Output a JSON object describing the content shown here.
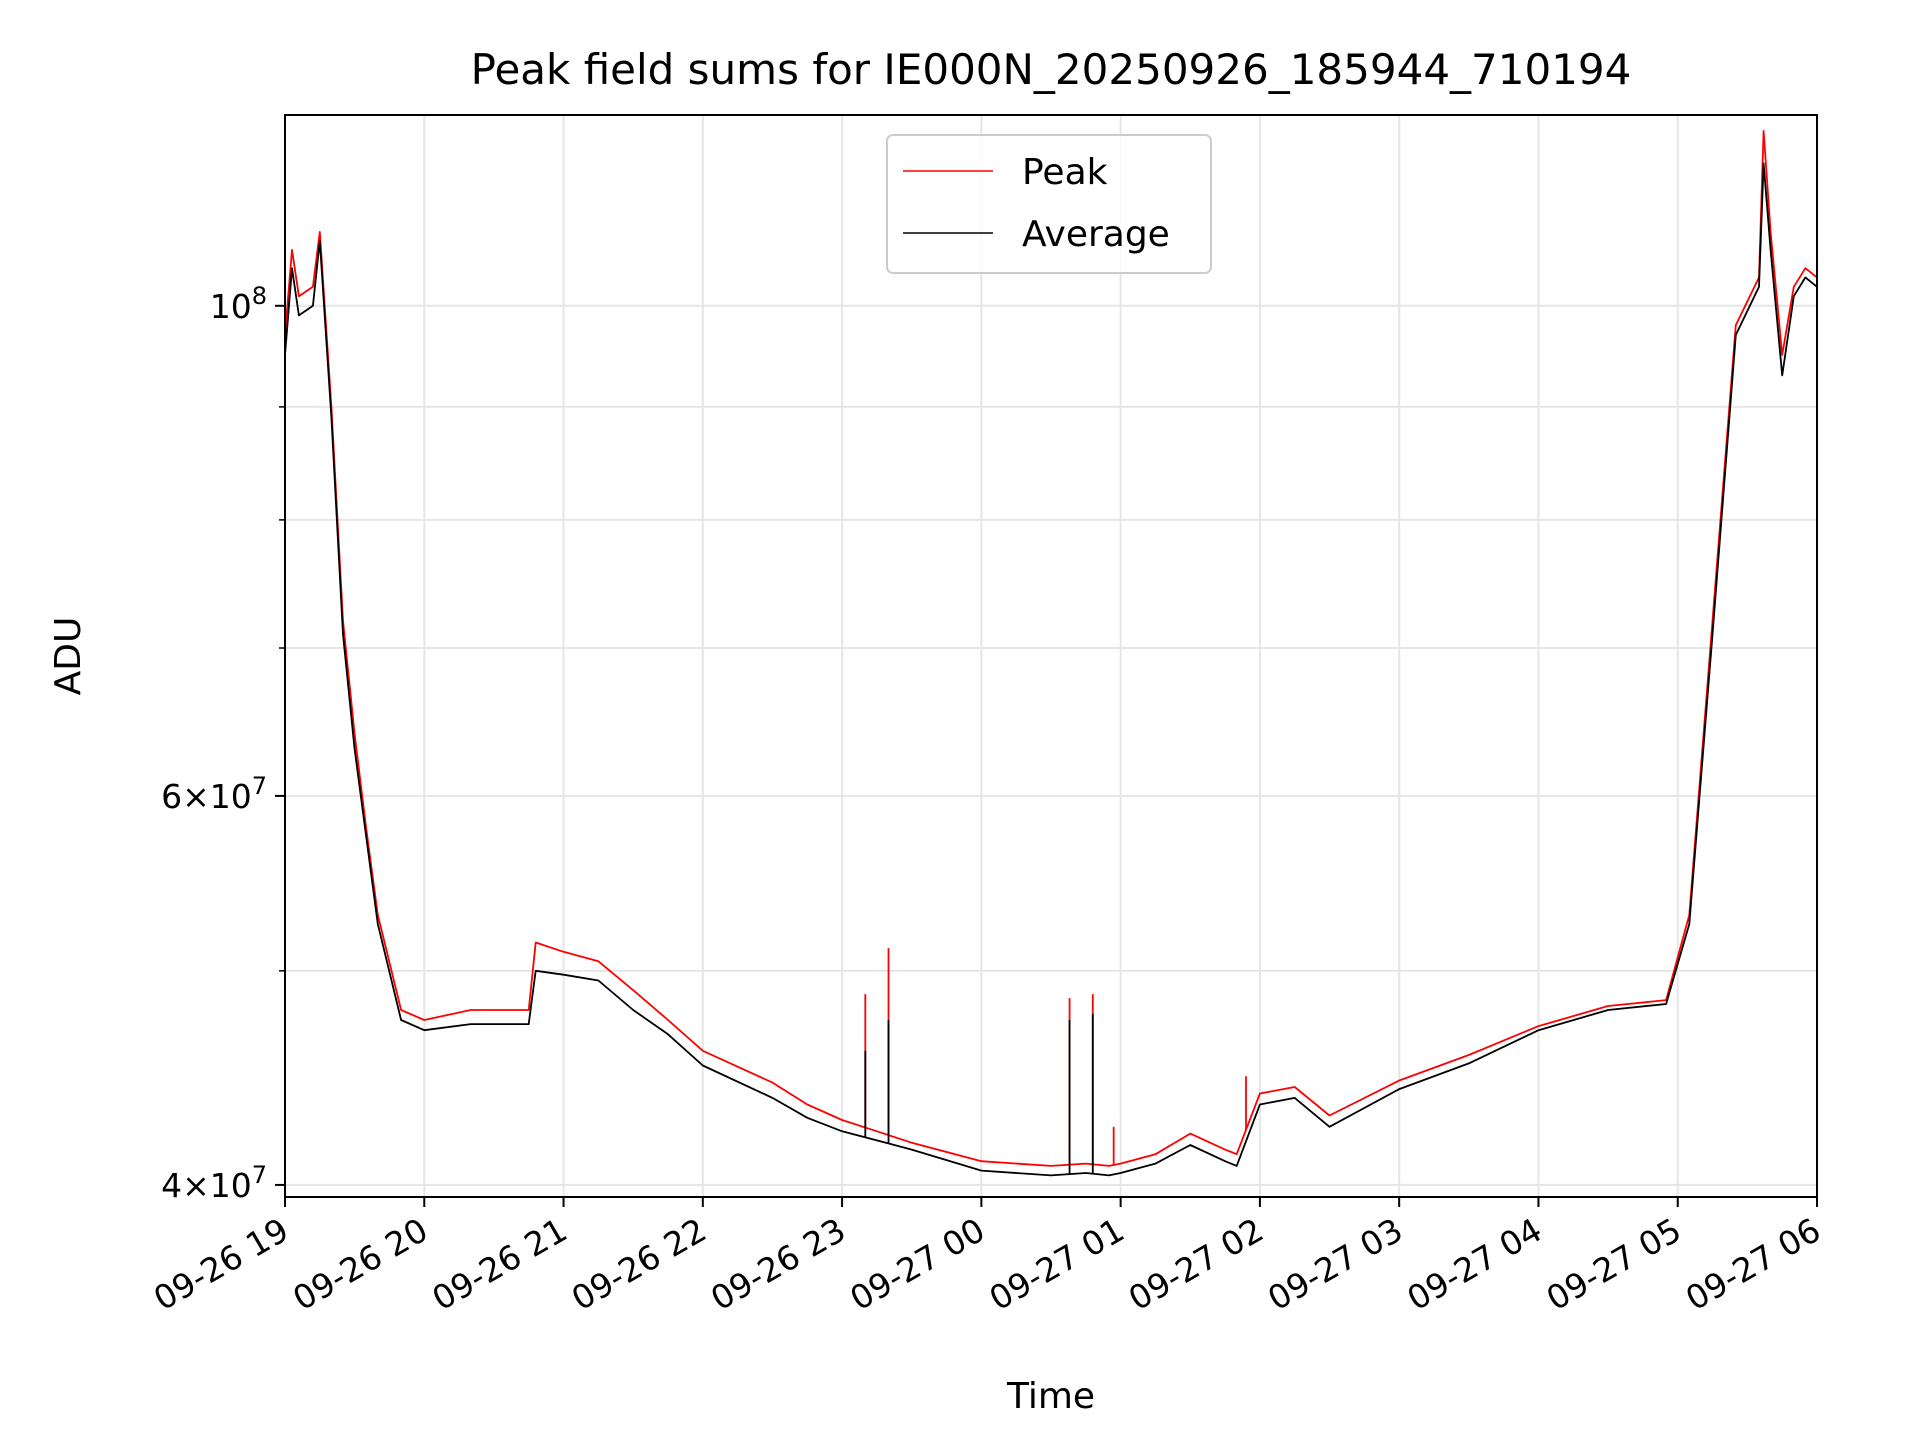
{
  "chart_data": {
    "type": "line",
    "title": "Peak field sums for IE000N_20250926_185944_710194",
    "xlabel": "Time",
    "ylabel": "ADU",
    "yscale": "log",
    "xlim": [
      "2025-09-26 19:00",
      "2025-09-27 06:00"
    ],
    "ylim": [
      39500000,
      122000000
    ],
    "x_tick_labels": [
      "09-26 19",
      "09-26 20",
      "09-26 21",
      "09-26 22",
      "09-26 23",
      "09-27 00",
      "09-27 01",
      "09-27 02",
      "09-27 03",
      "09-27 04",
      "09-27 05",
      "09-27 06"
    ],
    "y_tick_labels": [
      {
        "value": 40000000,
        "base": "4",
        "exp": "7",
        "times": true
      },
      {
        "value": 60000000,
        "base": "6",
        "exp": "7",
        "times": true
      },
      {
        "value": 100000000,
        "base": "10",
        "exp": "8",
        "times": false
      }
    ],
    "y_minor_ticks": [
      50000000,
      70000000,
      80000000,
      90000000
    ],
    "grid": true,
    "legend_position": "upper center",
    "series": [
      {
        "name": "Peak",
        "color": "#ff0000",
        "x": [
          "2025-09-26 19:00",
          "2025-09-26 19:03",
          "2025-09-26 19:06",
          "2025-09-26 19:12",
          "2025-09-26 19:15",
          "2025-09-26 19:20",
          "2025-09-26 19:25",
          "2025-09-26 19:30",
          "2025-09-26 19:35",
          "2025-09-26 19:40",
          "2025-09-26 19:50",
          "2025-09-26 20:00",
          "2025-09-26 20:20",
          "2025-09-26 20:45",
          "2025-09-26 20:48",
          "2025-09-26 21:00",
          "2025-09-26 21:15",
          "2025-09-26 21:30",
          "2025-09-26 21:45",
          "2025-09-26 22:00",
          "2025-09-26 22:30",
          "2025-09-26 22:45",
          "2025-09-26 23:00",
          "2025-09-26 23:15",
          "2025-09-26 23:30",
          "2025-09-27 00:00",
          "2025-09-27 00:30",
          "2025-09-27 00:45",
          "2025-09-27 00:55",
          "2025-09-27 01:00",
          "2025-09-27 01:15",
          "2025-09-27 01:30",
          "2025-09-27 01:45",
          "2025-09-27 01:50",
          "2025-09-27 02:00",
          "2025-09-27 02:15",
          "2025-09-27 02:30",
          "2025-09-27 03:00",
          "2025-09-27 03:30",
          "2025-09-27 04:00",
          "2025-09-27 04:30",
          "2025-09-27 04:55",
          "2025-09-27 05:05",
          "2025-09-27 05:15",
          "2025-09-27 05:25",
          "2025-09-27 05:35",
          "2025-09-27 05:37",
          "2025-09-27 05:40",
          "2025-09-27 05:45",
          "2025-09-27 05:50",
          "2025-09-27 05:55",
          "2025-09-27 06:00"
        ],
        "y": [
          97000000,
          106000000,
          101000000,
          102000000,
          108000000,
          90000000,
          72000000,
          64000000,
          58000000,
          53000000,
          48000000,
          47500000,
          48000000,
          48000000,
          51500000,
          51000000,
          50500000,
          49000000,
          47500000,
          46000000,
          44500000,
          43500000,
          42800000,
          42300000,
          41800000,
          41000000,
          40800000,
          40900000,
          40800000,
          40900000,
          41300000,
          42200000,
          41500000,
          41300000,
          44000000,
          44300000,
          43000000,
          44600000,
          45800000,
          47200000,
          48200000,
          48500000,
          53000000,
          72000000,
          98000000,
          103000000,
          120000000,
          108000000,
          95000000,
          102000000,
          104000000,
          103000000
        ]
      },
      {
        "name": "Average",
        "color": "#000000",
        "x": [
          "2025-09-26 19:00",
          "2025-09-26 19:03",
          "2025-09-26 19:06",
          "2025-09-26 19:12",
          "2025-09-26 19:15",
          "2025-09-26 19:20",
          "2025-09-26 19:25",
          "2025-09-26 19:30",
          "2025-09-26 19:35",
          "2025-09-26 19:40",
          "2025-09-26 19:50",
          "2025-09-26 20:00",
          "2025-09-26 20:20",
          "2025-09-26 20:45",
          "2025-09-26 20:48",
          "2025-09-26 21:00",
          "2025-09-26 21:15",
          "2025-09-26 21:30",
          "2025-09-26 21:45",
          "2025-09-26 22:00",
          "2025-09-26 22:30",
          "2025-09-26 22:45",
          "2025-09-26 23:00",
          "2025-09-26 23:15",
          "2025-09-26 23:30",
          "2025-09-27 00:00",
          "2025-09-27 00:30",
          "2025-09-27 00:45",
          "2025-09-27 00:55",
          "2025-09-27 01:00",
          "2025-09-27 01:15",
          "2025-09-27 01:30",
          "2025-09-27 01:45",
          "2025-09-27 01:50",
          "2025-09-27 02:00",
          "2025-09-27 02:15",
          "2025-09-27 02:30",
          "2025-09-27 03:00",
          "2025-09-27 03:30",
          "2025-09-27 04:00",
          "2025-09-27 04:30",
          "2025-09-27 04:55",
          "2025-09-27 05:05",
          "2025-09-27 05:15",
          "2025-09-27 05:25",
          "2025-09-27 05:35",
          "2025-09-27 05:37",
          "2025-09-27 05:40",
          "2025-09-27 05:45",
          "2025-09-27 05:50",
          "2025-09-27 05:55",
          "2025-09-27 06:00"
        ],
        "y": [
          95000000,
          104000000,
          99000000,
          100000000,
          107000000,
          89000000,
          71000000,
          63000000,
          57500000,
          52500000,
          47500000,
          47000000,
          47300000,
          47300000,
          50000000,
          49800000,
          49500000,
          48000000,
          46800000,
          45300000,
          43800000,
          42900000,
          42300000,
          41900000,
          41500000,
          40600000,
          40400000,
          40500000,
          40400000,
          40500000,
          40900000,
          41700000,
          41000000,
          40800000,
          43500000,
          43800000,
          42500000,
          44200000,
          45400000,
          47000000,
          48000000,
          48300000,
          52500000,
          71000000,
          97000000,
          102000000,
          116000000,
          106000000,
          93000000,
          101000000,
          103000000,
          102000000
        ]
      }
    ],
    "spikes": [
      {
        "series": "Peak",
        "x": "2025-09-26 23:10",
        "y": 48800000
      },
      {
        "series": "Peak",
        "x": "2025-09-26 23:20",
        "y": 51200000
      },
      {
        "series": "Peak",
        "x": "2025-09-27 00:38",
        "y": 48600000
      },
      {
        "series": "Peak",
        "x": "2025-09-27 00:48",
        "y": 48800000
      },
      {
        "series": "Peak",
        "x": "2025-09-27 00:57",
        "y": 42500000
      },
      {
        "series": "Peak",
        "x": "2025-09-27 01:54",
        "y": 44800000
      },
      {
        "series": "Average",
        "x": "2025-09-26 23:10",
        "y": 46000000
      },
      {
        "series": "Average",
        "x": "2025-09-26 23:20",
        "y": 47500000
      },
      {
        "series": "Average",
        "x": "2025-09-27 00:38",
        "y": 47500000
      },
      {
        "series": "Average",
        "x": "2025-09-27 00:48",
        "y": 47800000
      }
    ]
  }
}
